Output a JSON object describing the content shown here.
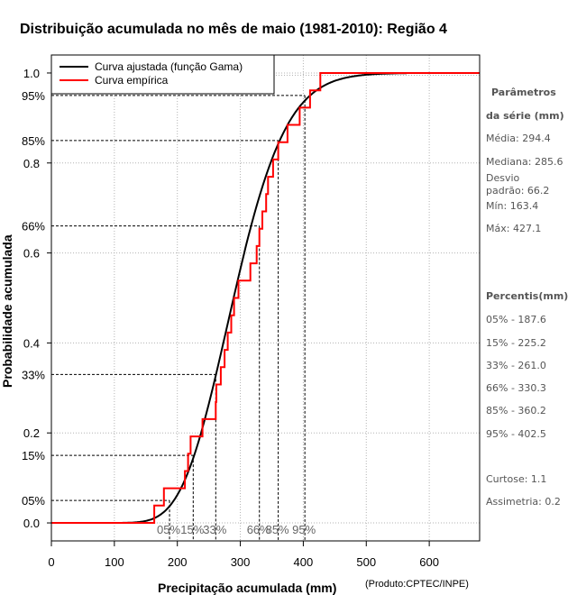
{
  "chart_data": {
    "type": "line",
    "title": "Distribuição acumulada no mês de maio (1981-2010): Região 4",
    "xlabel": "Precipitação acumulada (mm)",
    "ylabel": "Probabilidade acumulada",
    "credit": "(Produto:CPTEC/INPE)",
    "xlim": [
      0,
      680
    ],
    "ylim": [
      -0.04,
      1.04
    ],
    "x_ticks": [
      0,
      100,
      200,
      300,
      400,
      500,
      600
    ],
    "y_ticks": [
      0.0,
      0.2,
      0.4,
      0.6,
      0.8,
      1.0
    ],
    "y_tick_labels": [
      "0.0",
      "0.2",
      "0.4",
      "0.6",
      "0.8",
      "1.0"
    ],
    "grid": true,
    "legend_position": "top-left",
    "gamma_params": {
      "shape": 19.8,
      "scale": 14.86
    },
    "series": [
      {
        "name": "Curva ajustada (função Gama)",
        "color": "#000000",
        "kind": "fitted"
      },
      {
        "name": "Curva empírica",
        "color": "#ff0000",
        "kind": "step",
        "steps_x": [
          163.4,
          178.7,
          212.0,
          217.0,
          221.1,
          240.0,
          261.0,
          262.0,
          269.0,
          275.0,
          280.0,
          285.6,
          290.0,
          297.0,
          316.0,
          326.0,
          330.3,
          335.0,
          341.0,
          344.0,
          352.0,
          360.2,
          375.0,
          394.3,
          410.7,
          427.1
        ]
      }
    ],
    "percentiles": [
      {
        "label": "05%",
        "p": 0.05,
        "x": 187.6
      },
      {
        "label": "15%",
        "p": 0.15,
        "x": 225.2
      },
      {
        "label": "33%",
        "p": 0.33,
        "x": 261.0
      },
      {
        "label": "66%",
        "p": 0.66,
        "x": 330.3
      },
      {
        "label": "85%",
        "p": 0.85,
        "x": 360.2
      },
      {
        "label": "95%",
        "p": 0.95,
        "x": 402.5
      }
    ]
  },
  "sidebar": {
    "params_title_1": "Parâmetros",
    "params_title_2": "da série (mm)",
    "media": "Média: 294.4",
    "mediana": "Mediana: 285.6",
    "desvio_1": "Desvio",
    "desvio_2": "padrão: 66.2",
    "min": "Mín: 163.4",
    "max": "Máx: 427.1",
    "percentis_title": "Percentis(mm)",
    "p05": "05% - 187.6",
    "p15": "15% - 225.2",
    "p33": "33% - 261.0",
    "p66": "66% - 330.3",
    "p85": "85% - 360.2",
    "p95": "95% - 402.5",
    "curtose": "Curtose: 1.1",
    "assimetria": "Assimetria: 0.2"
  }
}
